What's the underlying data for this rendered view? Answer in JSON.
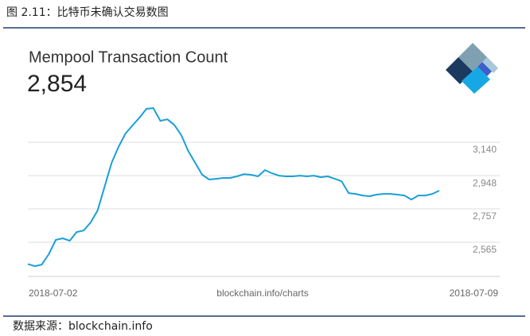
{
  "caption": "图 2.11：比特币未确认交易数图",
  "source_note": "数据来源：blockchain.info",
  "chart_data": {
    "type": "line",
    "title": "Mempool Transaction Count",
    "current_value": "2,854",
    "x_axis_labels": [
      "2018-07-02",
      "blockchain.info/charts",
      "2018-07-09"
    ],
    "color": "#1a9fd8",
    "grid": true,
    "ylim": [
      2369,
      3364
    ],
    "yticks": [
      {
        "value": 2565,
        "label": "2,565"
      },
      {
        "value": 2757,
        "label": "2,757"
      },
      {
        "value": 2948,
        "label": "2,948"
      },
      {
        "value": 3140,
        "label": "3,140"
      }
    ],
    "values": [
      2440,
      2428,
      2437,
      2497,
      2579,
      2588,
      2574,
      2624,
      2633,
      2679,
      2748,
      2884,
      3021,
      3113,
      3190,
      3236,
      3281,
      3332,
      3336,
      3263,
      3272,
      3240,
      3181,
      3090,
      3021,
      2953,
      2926,
      2930,
      2935,
      2935,
      2944,
      2957,
      2953,
      2944,
      2980,
      2962,
      2948,
      2944,
      2944,
      2948,
      2944,
      2948,
      2939,
      2944,
      2930,
      2916,
      2848,
      2843,
      2834,
      2830,
      2839,
      2843,
      2843,
      2839,
      2834,
      2811,
      2834,
      2834,
      2843,
      2862
    ]
  }
}
